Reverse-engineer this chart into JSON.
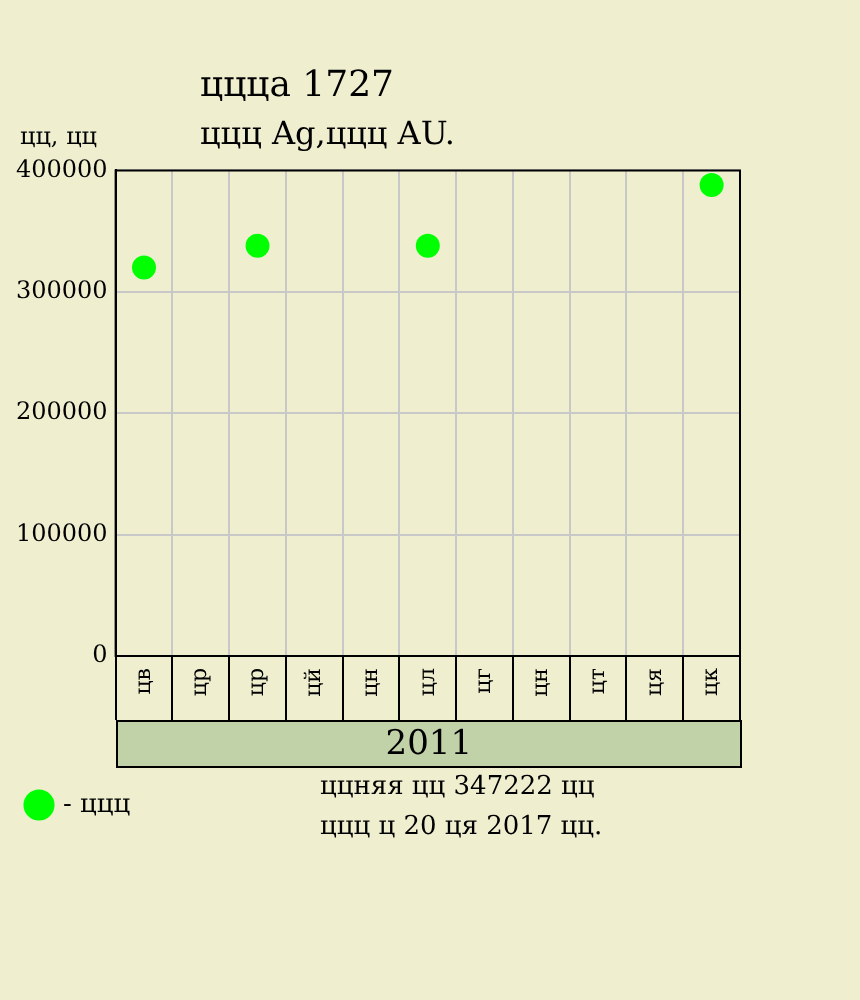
{
  "chart_data": {
    "type": "scatter",
    "title": "ццца 1727",
    "subtitle": "ццц Ag,ццц AU.",
    "ylabel": "цц, цц",
    "xlabel": "2011",
    "categories": [
      "цв",
      "цр",
      "цр",
      "цй",
      "цн",
      "цл",
      "цг",
      "цн",
      "цт",
      "ця",
      "цк"
    ],
    "series": [
      {
        "name": "- ццц",
        "color": "#00ff00",
        "values": [
          320000,
          null,
          338000,
          null,
          null,
          338000,
          null,
          null,
          null,
          null,
          388000
        ]
      }
    ],
    "ylim": [
      0,
      400000
    ],
    "yticks": [
      0,
      100000,
      200000,
      300000,
      400000
    ],
    "grid": true,
    "legend": "bottom left",
    "marker": "circle",
    "annotations": [
      "ццняя цц 347222 цц",
      "ццц ц 20 ця 2017 цц."
    ]
  }
}
